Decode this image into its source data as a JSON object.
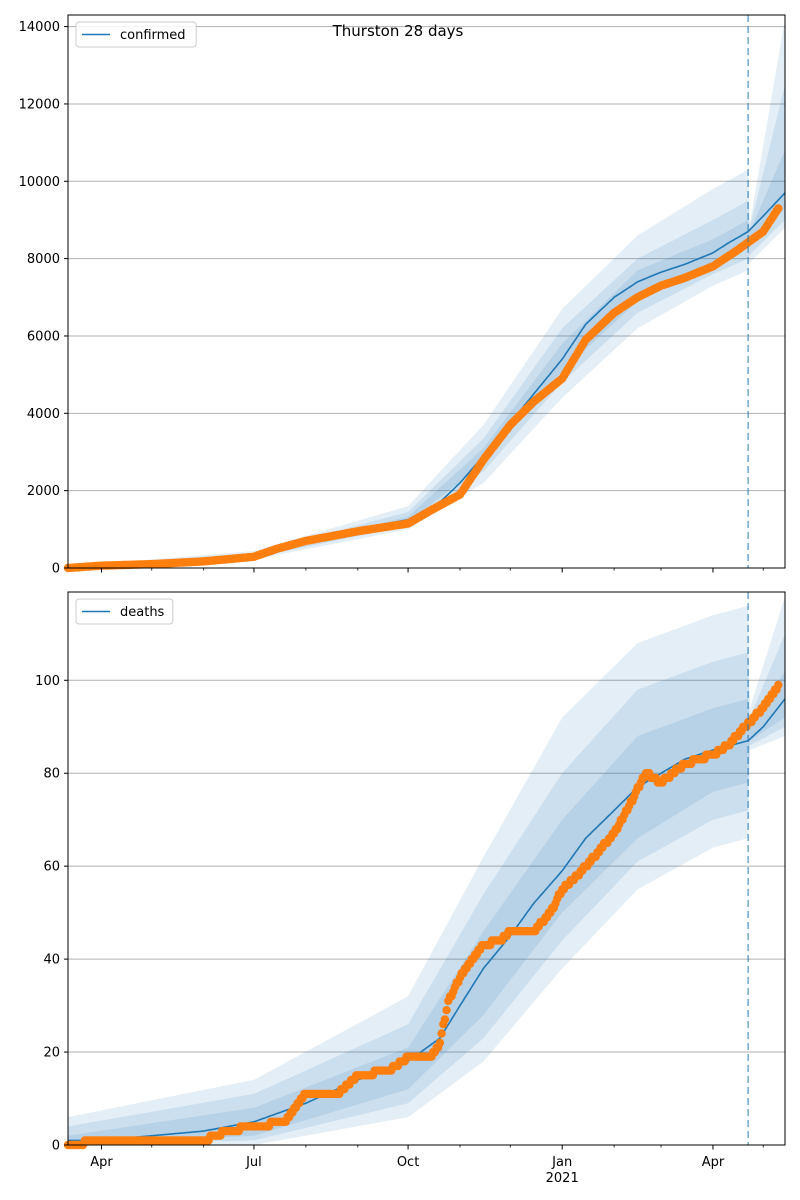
{
  "figure_title": "Thurston 28 days",
  "colors": {
    "model": "#1f77b4",
    "observed": "#ff7f0e",
    "band": "#1f77b4",
    "grid": "#b0b0b0",
    "vline": "#1f77b4"
  },
  "x_axis": {
    "start": "2020-03-12",
    "end": "2021-05-14",
    "ticks": [
      {
        "date": "2020-04-01",
        "label": "Apr",
        "sub": ""
      },
      {
        "date": "2020-07-01",
        "label": "Jul",
        "sub": ""
      },
      {
        "date": "2020-10-01",
        "label": "Oct",
        "sub": ""
      },
      {
        "date": "2021-01-01",
        "label": "Jan",
        "sub": "2021"
      },
      {
        "date": "2021-04-01",
        "label": "Apr",
        "sub": ""
      }
    ],
    "forecast_start": "2021-04-22"
  },
  "chart_data": [
    {
      "type": "line",
      "title": "Thurston 28 days",
      "legend": "confirmed",
      "legend_position": "top-left",
      "grid": "y",
      "ylim": [
        0,
        14300
      ],
      "yticks": [
        0,
        2000,
        4000,
        6000,
        8000,
        10000,
        12000,
        14000
      ],
      "series": [
        {
          "name": "confirmed",
          "kind": "model",
          "x": [
            "2020-03-12",
            "2020-04-01",
            "2020-05-01",
            "2020-06-01",
            "2020-07-01",
            "2020-08-01",
            "2020-09-01",
            "2020-10-01",
            "2020-10-20",
            "2020-11-01",
            "2020-11-15",
            "2020-12-01",
            "2020-12-15",
            "2021-01-01",
            "2021-01-15",
            "2021-02-01",
            "2021-02-15",
            "2021-03-01",
            "2021-03-15",
            "2021-04-01",
            "2021-04-10",
            "2021-04-22",
            "2021-05-01",
            "2021-05-14"
          ],
          "y": [
            10,
            60,
            120,
            220,
            320,
            700,
            1000,
            1250,
            1700,
            2200,
            2900,
            3750,
            4500,
            5400,
            6300,
            7000,
            7400,
            7650,
            7850,
            8150,
            8400,
            8700,
            9100,
            9700
          ]
        },
        {
          "name": "observed",
          "kind": "points",
          "x": [
            "2020-03-12",
            "2020-04-01",
            "2020-05-01",
            "2020-06-01",
            "2020-07-01",
            "2020-07-15",
            "2020-08-01",
            "2020-09-01",
            "2020-10-01",
            "2020-10-15",
            "2020-11-01",
            "2020-11-15",
            "2020-12-01",
            "2020-12-15",
            "2021-01-01",
            "2021-01-15",
            "2021-02-01",
            "2021-02-15",
            "2021-03-01",
            "2021-03-15",
            "2021-04-01",
            "2021-04-15",
            "2021-05-01",
            "2021-05-10"
          ],
          "y": [
            0,
            60,
            100,
            170,
            290,
            500,
            700,
            950,
            1150,
            1500,
            1900,
            2800,
            3700,
            4300,
            4900,
            5900,
            6600,
            7000,
            7300,
            7500,
            7800,
            8200,
            8700,
            9300
          ]
        }
      ],
      "bands": [
        {
          "level": "outer",
          "x": [
            "2020-03-12",
            "2020-07-01",
            "2020-10-01",
            "2020-11-15",
            "2021-01-01",
            "2021-02-15",
            "2021-04-01",
            "2021-04-22",
            "2021-04-23",
            "2021-05-14"
          ],
          "lower": [
            0,
            220,
            1000,
            2200,
            4400,
            6200,
            7300,
            7700,
            7900,
            8800
          ],
          "upper": [
            40,
            440,
            1600,
            3700,
            6700,
            8600,
            9800,
            10300,
            8900,
            14200
          ]
        },
        {
          "level": "middle",
          "x": [
            "2020-03-12",
            "2020-07-01",
            "2020-10-01",
            "2020-11-15",
            "2021-01-01",
            "2021-02-15",
            "2021-04-01",
            "2021-04-22",
            "2021-04-23",
            "2021-05-14"
          ],
          "lower": [
            0,
            260,
            1100,
            2500,
            4800,
            6600,
            7600,
            8000,
            8100,
            9000
          ],
          "upper": [
            30,
            390,
            1450,
            3350,
            6200,
            8000,
            9000,
            9500,
            8800,
            12500
          ]
        },
        {
          "level": "inner",
          "x": [
            "2020-03-12",
            "2020-07-01",
            "2020-10-01",
            "2020-11-15",
            "2021-01-01",
            "2021-02-15",
            "2021-04-01",
            "2021-04-22",
            "2021-04-23",
            "2021-05-14"
          ],
          "lower": [
            0,
            290,
            1180,
            2700,
            5100,
            6900,
            7850,
            8350,
            8400,
            9300
          ],
          "upper": [
            20,
            350,
            1330,
            3100,
            5800,
            7700,
            8500,
            9000,
            8700,
            10800
          ]
        }
      ]
    },
    {
      "type": "line",
      "title": "",
      "legend": "deaths",
      "legend_position": "top-left",
      "grid": "y",
      "ylim": [
        0,
        119
      ],
      "yticks": [
        0,
        20,
        40,
        60,
        80,
        100
      ],
      "series": [
        {
          "name": "deaths",
          "kind": "model",
          "x": [
            "2020-03-12",
            "2020-04-01",
            "2020-05-01",
            "2020-06-01",
            "2020-07-01",
            "2020-08-01",
            "2020-09-01",
            "2020-10-01",
            "2020-10-20",
            "2020-11-01",
            "2020-11-15",
            "2020-12-01",
            "2020-12-15",
            "2021-01-01",
            "2021-01-15",
            "2021-02-01",
            "2021-02-15",
            "2021-03-01",
            "2021-03-15",
            "2021-04-01",
            "2021-04-22",
            "2021-05-01",
            "2021-05-14"
          ],
          "y": [
            1,
            1,
            2,
            3,
            5,
            9,
            14,
            18,
            23,
            30,
            38,
            45,
            52,
            59,
            66,
            72,
            77,
            80,
            83,
            85,
            87,
            90,
            96
          ]
        },
        {
          "name": "observed",
          "kind": "points",
          "x": [
            "2020-03-12",
            "2020-04-01",
            "2020-05-01",
            "2020-06-01",
            "2020-06-15",
            "2020-07-01",
            "2020-07-20",
            "2020-08-01",
            "2020-08-20",
            "2020-09-01",
            "2020-09-20",
            "2020-10-01",
            "2020-10-15",
            "2020-10-20",
            "2020-10-25",
            "2020-11-01",
            "2020-11-15",
            "2020-11-25",
            "2020-12-01",
            "2020-12-15",
            "2020-12-25",
            "2021-01-01",
            "2021-01-10",
            "2021-01-20",
            "2021-02-01",
            "2021-02-10",
            "2021-02-20",
            "2021-03-01",
            "2021-03-15",
            "2021-04-01",
            "2021-04-10",
            "2021-04-20",
            "2021-05-01",
            "2021-05-10"
          ],
          "y": [
            0,
            1,
            1,
            1,
            3,
            4,
            5,
            11,
            11,
            15,
            16,
            19,
            19,
            22,
            31,
            36,
            43,
            44,
            46,
            46,
            50,
            55,
            58,
            62,
            67,
            73,
            80,
            78,
            82,
            84,
            86,
            90,
            94,
            99
          ]
        }
      ],
      "bands": [
        {
          "level": "outer",
          "x": [
            "2020-03-12",
            "2020-07-01",
            "2020-10-01",
            "2020-11-15",
            "2021-01-01",
            "2021-02-15",
            "2021-04-01",
            "2021-04-22",
            "2021-04-23",
            "2021-05-14"
          ],
          "lower": [
            0,
            0,
            6,
            18,
            38,
            55,
            64,
            66,
            85,
            88
          ],
          "upper": [
            6,
            14,
            32,
            62,
            92,
            108,
            114,
            116,
            94,
            118
          ]
        },
        {
          "level": "middle",
          "x": [
            "2020-03-12",
            "2020-07-01",
            "2020-10-01",
            "2020-11-15",
            "2021-01-01",
            "2021-02-15",
            "2021-04-01",
            "2021-04-22",
            "2021-04-23",
            "2021-05-14"
          ],
          "lower": [
            0,
            1,
            9,
            23,
            44,
            61,
            70,
            72,
            86,
            90
          ],
          "upper": [
            4,
            11,
            26,
            54,
            80,
            98,
            104,
            106,
            92,
            110
          ]
        },
        {
          "level": "inner",
          "x": [
            "2020-03-12",
            "2020-07-01",
            "2020-10-01",
            "2020-11-15",
            "2021-01-01",
            "2021-02-15",
            "2021-04-01",
            "2021-04-22",
            "2021-04-23",
            "2021-05-14"
          ],
          "lower": [
            0,
            2,
            12,
            28,
            50,
            66,
            76,
            78,
            87,
            92
          ],
          "upper": [
            2,
            8,
            21,
            46,
            70,
            88,
            94,
            96,
            90,
            102
          ]
        }
      ]
    }
  ]
}
